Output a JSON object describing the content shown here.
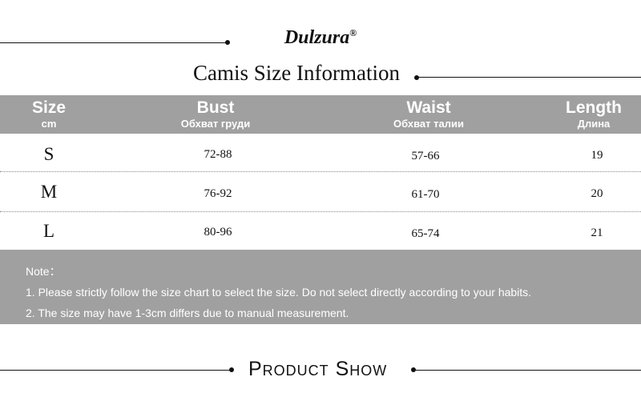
{
  "brand": {
    "name": "Dulzura",
    "mark": "®"
  },
  "title": "Camis Size Information",
  "table": {
    "headers": [
      {
        "main": "Size",
        "sub": "cm"
      },
      {
        "main": "Bust",
        "sub": "Обхват груди"
      },
      {
        "main": "Waist",
        "sub": "Обхват талии"
      },
      {
        "main": "Length",
        "sub": "Длина"
      }
    ],
    "rows": [
      [
        "S",
        "72-88",
        "57-66",
        "19"
      ],
      [
        "M",
        "76-92",
        "61-70",
        "20"
      ],
      [
        "L",
        "80-96",
        "65-74",
        "21"
      ]
    ]
  },
  "note": {
    "label": "Note：",
    "lines": [
      "1. Please strictly follow the size chart to select the size. Do not select directly according to your habits.",
      "2. The size may have 1-3cm differs due to manual measurement."
    ]
  },
  "section": "Product Show",
  "colors": {
    "band": "#a0a0a0",
    "text": "#111111"
  }
}
